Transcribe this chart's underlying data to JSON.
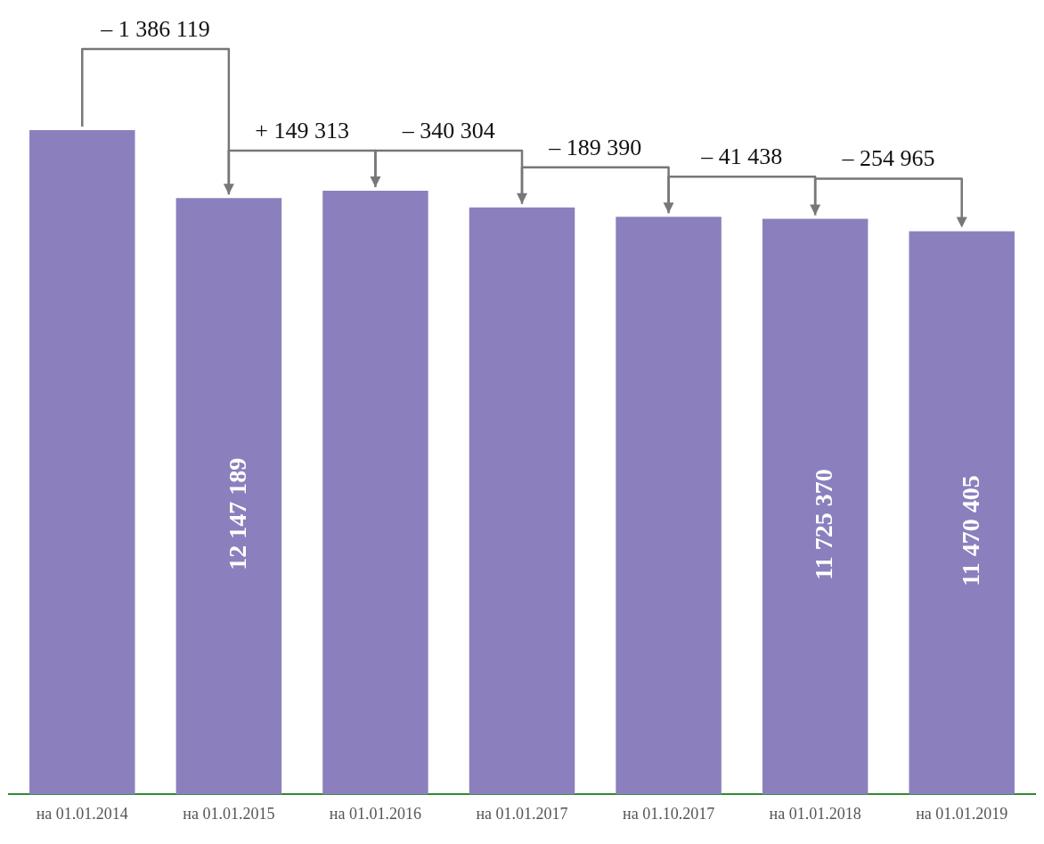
{
  "chart_data": {
    "type": "bar",
    "categories": [
      "на 01.01.2014",
      "на 01.01.2015",
      "на 01.01.2016",
      "на 01.01.2017",
      "на 01.10.2017",
      "на 01.01.2018",
      "на 01.01.2019"
    ],
    "values": [
      13533308,
      12147189,
      12296502,
      11956198,
      11766808,
      11725370,
      11470405
    ],
    "value_labels": [
      null,
      "12 147 189",
      null,
      null,
      null,
      "11 725 370",
      "11 470 405"
    ],
    "color": "#8b80bd",
    "tick_labels": "x",
    "grid": false,
    "legend": false,
    "annotations": [
      "– 1 386 119",
      "+ 149 313",
      "– 340 304",
      "– 189 390",
      "– 41 438",
      "– 254 965"
    ]
  }
}
